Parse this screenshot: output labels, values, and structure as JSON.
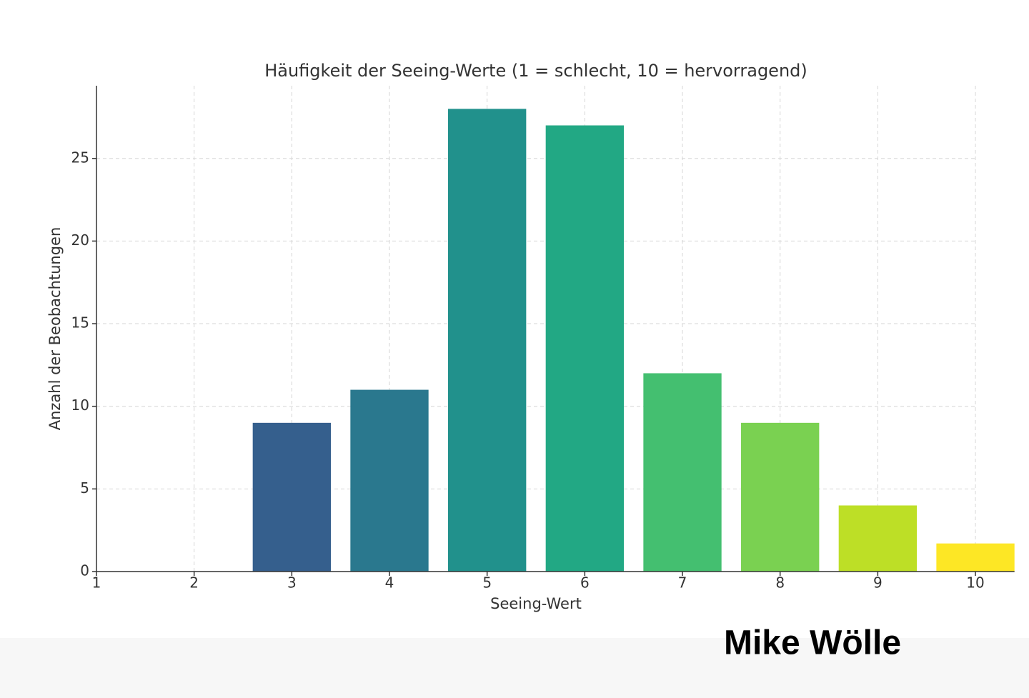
{
  "chart_data": {
    "type": "bar",
    "title": "Häufigkeit der Seeing-Werte (1 = schlecht, 10 = hervorragend)",
    "x_label": "Seeing-Wert",
    "y_label": "Anzahl der Beobachtungen",
    "x": [
      3,
      4,
      5,
      6,
      7,
      8,
      9,
      10
    ],
    "values": [
      9,
      11,
      28,
      27,
      12,
      9,
      4,
      1.7
    ],
    "colors": [
      "#355f8d",
      "#2a788e",
      "#21918c",
      "#22a884",
      "#44bf70",
      "#7ad151",
      "#bddf26",
      "#fde725"
    ],
    "bar_width": 0.8,
    "xlim": [
      1,
      10.4
    ],
    "xticks": [
      1,
      2,
      3,
      4,
      5,
      6,
      7,
      8,
      9,
      10
    ],
    "ylim": [
      0,
      29.4
    ],
    "yticks": [
      0,
      5,
      10,
      15,
      20,
      25
    ],
    "grid": true
  },
  "watermark": "Mike Wölle"
}
